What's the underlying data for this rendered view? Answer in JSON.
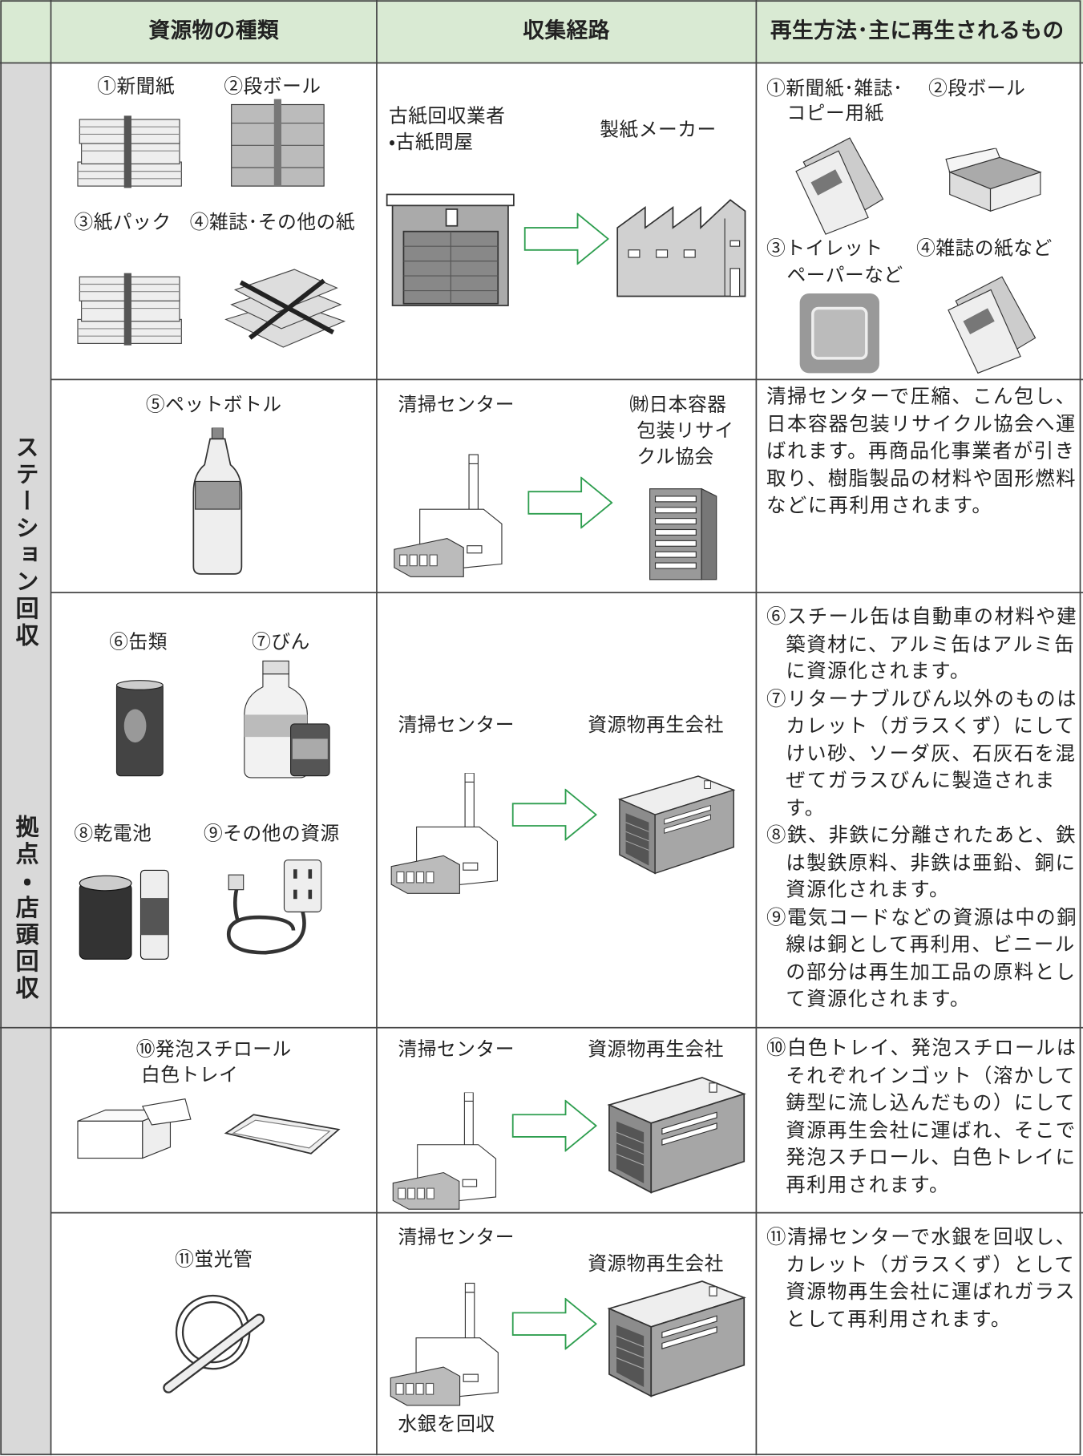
{
  "header": {
    "columns": [
      "資源物の種類",
      "収集経路",
      "再生方法･主に再生されるもの"
    ]
  },
  "groups": [
    "ステーション回収",
    "拠点・店頭回収"
  ],
  "rows": [
    {
      "items": [
        "①新聞紙",
        "②段ボール",
        "③紙パック",
        "④雑誌･その他の紙"
      ],
      "route": [
        "古紙回収業者",
        "・古紙問屋",
        "製紙メーカー"
      ],
      "products": [
        "①新聞紙･雑誌･",
        "コピー用紙",
        "②段ボール",
        "③トイレット",
        "ペーパーなど",
        "④雑誌の紙など"
      ]
    },
    {
      "items": [
        "⑤ペットボトル"
      ],
      "route": [
        "清掃センター",
        "㈶日本容器",
        "包装リサイ",
        "クル協会"
      ],
      "description": [
        "清掃センターで圧縮、こん包し、日本容器包装リサイクル協会へ運ばれます。再商品化事業者が引き取り、樹脂製品の材料や固形燃料などに再利用されます。"
      ]
    },
    {
      "items": [
        "⑥缶類",
        "⑦びん",
        "⑧乾電池",
        "⑨その他の資源"
      ],
      "route": [
        "清掃センター",
        "資源物再生会社"
      ],
      "description": [
        "⑥スチール缶は自動車の材料や建築資材に、アルミ缶はアルミ缶に資源化されます。",
        "⑦リターナブルびん以外のものはカレット（ガラスくず）にしてけい砂、ソーダ灰、石灰石を混ぜてガラスびんに製造されます。",
        "⑧鉄、非鉄に分離されたあと、鉄は製鉄原料、非鉄は亜鉛、銅に資源化されます。",
        "⑨電気コードなどの資源は中の銅線は銅として再利用、ビニールの部分は再生加工品の原料として資源化されます。"
      ]
    },
    {
      "items": [
        "⑩発泡スチロール",
        "白色トレイ"
      ],
      "route": [
        "清掃センター",
        "資源物再生会社"
      ],
      "description": [
        "⑩白色トレイ、発泡スチロールはそれぞれインゴット（溶かして鋳型に流し込んだもの）にして資源再生会社に運ばれ、そこで発泡スチロール、白色トレイに再利用されます。"
      ]
    },
    {
      "items": [
        "⑪蛍光管"
      ],
      "route": [
        "清掃センター",
        "資源物再生会社",
        "水銀を回収"
      ],
      "description": [
        "⑪清掃センターで水銀を回収し、カレット（ガラスくず）として資源物再生会社に運ばれガラスとして再利用されます。"
      ]
    }
  ]
}
